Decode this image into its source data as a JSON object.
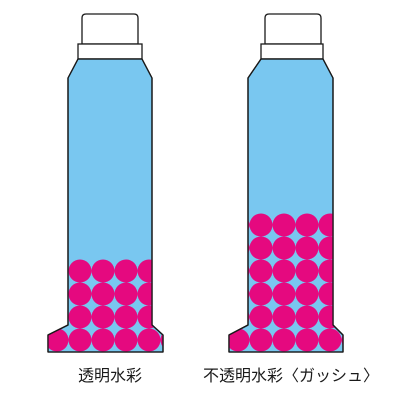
{
  "colors": {
    "tube": "#79c7f0",
    "pigment": "#e5097f",
    "outline": "#1a1a1a",
    "cap": "#ffffff"
  },
  "tubes": [
    {
      "label": "透明水彩",
      "pigment_rows": 4
    },
    {
      "label": "不透明水彩〈ガッシュ〉",
      "pigment_rows": 6
    }
  ]
}
